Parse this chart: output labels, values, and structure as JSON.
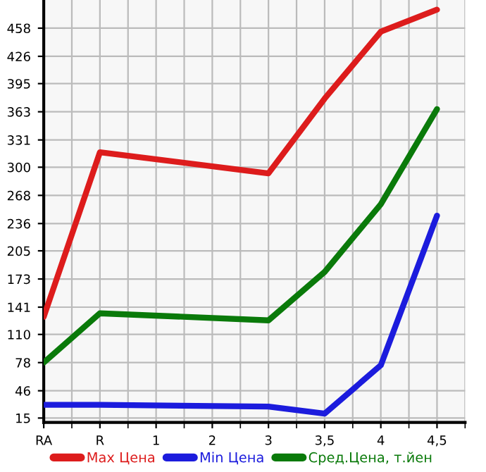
{
  "chart_data": {
    "type": "line",
    "categories": [
      "RA",
      "R",
      "1",
      "2",
      "3",
      "3,5",
      "4",
      "4,5"
    ],
    "series": [
      {
        "name": "Max Цена",
        "color": "#dd1c1c",
        "values": [
          130,
          317,
          null,
          null,
          293,
          378,
          454,
          479
        ]
      },
      {
        "name": "Min Цена",
        "color": "#1c1cdd",
        "values": [
          30,
          30,
          null,
          null,
          28,
          20,
          75,
          245
        ]
      },
      {
        "name": "Сред.Цена, т.йен",
        "color": "#0a7a0a",
        "values": [
          78,
          134,
          null,
          null,
          126,
          181,
          258,
          366
        ]
      }
    ],
    "ylim": [
      10,
      490
    ],
    "yticks": [
      15,
      46,
      78,
      110,
      141,
      173,
      205,
      236,
      268,
      300,
      331,
      363,
      395,
      426,
      458
    ],
    "grid": true,
    "legend": "bottom",
    "marker": "none",
    "line_style": "solid"
  }
}
